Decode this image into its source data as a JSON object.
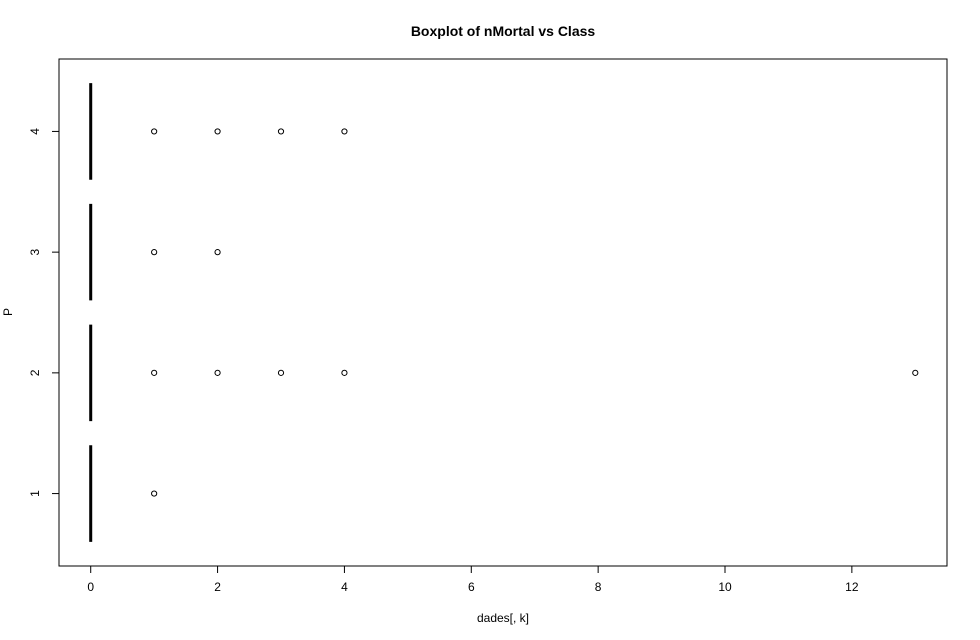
{
  "chart_data": {
    "type": "boxplot",
    "orientation": "horizontal",
    "title": "Boxplot of nMortal vs Class",
    "xlabel": "dades[, k]",
    "ylabel": "P",
    "xlim": [
      -0.5,
      13.5
    ],
    "ylim": [
      0.4,
      4.6
    ],
    "x_ticks": [
      0,
      2,
      4,
      6,
      8,
      10,
      12
    ],
    "grid": false,
    "legend": "none",
    "groups": [
      {
        "label": "1",
        "median": 0,
        "q1": 0,
        "q3": 0,
        "whisker_low": 0,
        "whisker_high": 0,
        "outliers": [
          1
        ]
      },
      {
        "label": "2",
        "median": 0,
        "q1": 0,
        "q3": 0,
        "whisker_low": 0,
        "whisker_high": 0,
        "outliers": [
          1,
          2,
          3,
          4,
          13
        ]
      },
      {
        "label": "3",
        "median": 0,
        "q1": 0,
        "q3": 0,
        "whisker_low": 0,
        "whisker_high": 0,
        "outliers": [
          1,
          2
        ]
      },
      {
        "label": "4",
        "median": 0,
        "q1": 0,
        "q3": 0,
        "whisker_low": 0,
        "whisker_high": 0,
        "outliers": [
          1,
          2,
          3,
          4
        ]
      }
    ]
  }
}
